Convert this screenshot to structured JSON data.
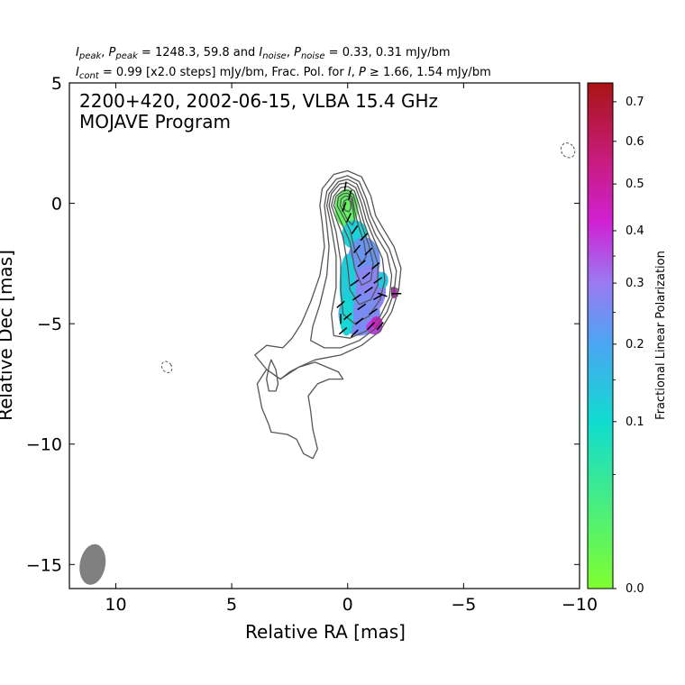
{
  "header": {
    "line1": "I_peak, P_peak = 1248.3, 59.8 and I_noise, P_noise = 0.33, 0.31 mJy/bm",
    "line1_parts": [
      {
        "t": "I",
        "s": "i"
      },
      {
        "t": "peak",
        "s": "sub"
      },
      {
        "t": ", "
      },
      {
        "t": "P",
        "s": "i"
      },
      {
        "t": "peak",
        "s": "sub"
      },
      {
        "t": " = 1248.3, 59.8 and "
      },
      {
        "t": "I",
        "s": "i"
      },
      {
        "t": "noise",
        "s": "sub"
      },
      {
        "t": ", "
      },
      {
        "t": "P",
        "s": "i"
      },
      {
        "t": "noise",
        "s": "sub"
      },
      {
        "t": " = 0.33, 0.31 mJy/bm"
      }
    ],
    "line2": "I_cont = 0.99 [x2.0 steps] mJy/bm, Frac. Pol. for I, P ≥ 1.66, 1.54 mJy/bm",
    "line2_parts": [
      {
        "t": "I",
        "s": "i"
      },
      {
        "t": "cont",
        "s": "sub"
      },
      {
        "t": " = 0.99 [x2.0 steps] mJy/bm, Frac. Pol. for "
      },
      {
        "t": "I",
        "s": "i"
      },
      {
        "t": ", "
      },
      {
        "t": "P",
        "s": "i"
      },
      {
        "t": " ≥ 1.66, 1.54 mJy/bm"
      }
    ]
  },
  "chart_data": {
    "type": "contour",
    "title_lines": [
      "2200+420, 2002-06-15, VLBA 15.4 GHz",
      "MOJAVE Program"
    ],
    "xlabel": "Relative RA [mas]",
    "ylabel": "Relative Dec [mas]",
    "xlim": [
      12,
      -10
    ],
    "ylim": [
      -16,
      5
    ],
    "xticks": [
      10,
      5,
      0,
      -5,
      -10
    ],
    "yticks": [
      5,
      0,
      -5,
      -10,
      -15
    ],
    "contour_color": "#555555",
    "contours": [
      [
        [
          1.2,
          -0.1
        ],
        [
          1.1,
          0.6
        ],
        [
          0.6,
          1.2
        ],
        [
          0.0,
          1.35
        ],
        [
          -0.6,
          1.1
        ],
        [
          -1.0,
          0.3
        ],
        [
          -1.2,
          -0.5
        ],
        [
          -1.5,
          -1.0
        ],
        [
          -2.0,
          -1.8
        ],
        [
          -2.3,
          -2.7
        ],
        [
          -2.2,
          -3.6
        ],
        [
          -1.9,
          -4.5
        ],
        [
          -1.4,
          -5.3
        ],
        [
          -0.6,
          -5.9
        ],
        [
          0.3,
          -6.3
        ],
        [
          1.4,
          -6.5
        ],
        [
          2.1,
          -6.8
        ],
        [
          2.5,
          -7.0
        ],
        [
          2.9,
          -7.3
        ],
        [
          3.5,
          -6.9
        ],
        [
          4.0,
          -6.3
        ],
        [
          3.5,
          -5.9
        ],
        [
          2.8,
          -6.0
        ],
        [
          2.4,
          -5.6
        ],
        [
          2.0,
          -5.0
        ],
        [
          1.6,
          -4.1
        ],
        [
          1.2,
          -3.0
        ],
        [
          1.0,
          -1.8
        ],
        [
          1.1,
          -0.8
        ],
        [
          1.2,
          -0.1
        ]
      ],
      [
        [
          3.5,
          -6.9
        ],
        [
          3.9,
          -7.5
        ],
        [
          3.7,
          -8.5
        ],
        [
          3.4,
          -9.2
        ],
        [
          3.3,
          -9.5
        ],
        [
          2.6,
          -9.6
        ],
        [
          2.2,
          -9.8
        ],
        [
          1.9,
          -10.4
        ],
        [
          1.5,
          -10.6
        ],
        [
          1.3,
          -10.2
        ],
        [
          1.5,
          -9.4
        ],
        [
          1.6,
          -8.6
        ],
        [
          1.7,
          -8.0
        ],
        [
          1.3,
          -7.5
        ],
        [
          0.8,
          -7.3
        ],
        [
          0.2,
          -7.3
        ],
        [
          0.4,
          -7.0
        ],
        [
          1.4,
          -6.6
        ],
        [
          2.1,
          -6.8
        ],
        [
          2.9,
          -7.3
        ],
        [
          3.5,
          -6.9
        ]
      ],
      [
        [
          3.3,
          -6.5
        ],
        [
          3.1,
          -6.9
        ],
        [
          3.0,
          -7.5
        ],
        [
          3.1,
          -7.8
        ],
        [
          3.4,
          -7.8
        ],
        [
          3.5,
          -7.3
        ],
        [
          3.4,
          -6.8
        ],
        [
          3.3,
          -6.5
        ]
      ],
      [
        [
          1.0,
          -0.1
        ],
        [
          0.9,
          0.5
        ],
        [
          0.5,
          1.0
        ],
        [
          0.0,
          1.15
        ],
        [
          -0.5,
          0.9
        ],
        [
          -0.8,
          0.2
        ],
        [
          -1.0,
          -0.5
        ],
        [
          -1.3,
          -1.1
        ],
        [
          -1.8,
          -1.9
        ],
        [
          -2.1,
          -2.8
        ],
        [
          -2.0,
          -3.7
        ],
        [
          -1.7,
          -4.5
        ],
        [
          -1.2,
          -5.2
        ],
        [
          -0.5,
          -5.7
        ],
        [
          0.3,
          -6.0
        ],
        [
          1.0,
          -6.0
        ],
        [
          1.6,
          -5.7
        ],
        [
          1.5,
          -5.1
        ],
        [
          1.2,
          -4.2
        ],
        [
          0.9,
          -3.0
        ],
        [
          0.8,
          -1.8
        ],
        [
          0.9,
          -0.9
        ],
        [
          1.0,
          -0.1
        ]
      ],
      [
        [
          0.9,
          -0.1
        ],
        [
          0.8,
          0.4
        ],
        [
          0.4,
          0.9
        ],
        [
          0.0,
          1.0
        ],
        [
          -0.4,
          0.8
        ],
        [
          -0.7,
          0.1
        ],
        [
          -0.9,
          -0.6
        ],
        [
          -1.2,
          -1.3
        ],
        [
          -1.7,
          -2.1
        ],
        [
          -1.9,
          -3.0
        ],
        [
          -1.8,
          -3.9
        ],
        [
          -1.4,
          -4.7
        ],
        [
          -0.8,
          -5.3
        ],
        [
          -0.1,
          -5.6
        ],
        [
          0.6,
          -5.5
        ],
        [
          0.7,
          -4.6
        ],
        [
          0.5,
          -3.5
        ],
        [
          0.5,
          -2.2
        ],
        [
          0.7,
          -1.0
        ],
        [
          0.9,
          -0.1
        ]
      ],
      [
        [
          0.8,
          -0.1
        ],
        [
          0.7,
          0.4
        ],
        [
          0.35,
          0.8
        ],
        [
          0.0,
          0.85
        ],
        [
          -0.35,
          0.65
        ],
        [
          -0.6,
          0.0
        ],
        [
          -0.8,
          -0.7
        ],
        [
          -1.1,
          -1.4
        ],
        [
          -1.5,
          -2.3
        ],
        [
          -1.6,
          -3.2
        ],
        [
          -1.4,
          -4.0
        ],
        [
          -0.9,
          -4.7
        ],
        [
          -0.3,
          -5.0
        ],
        [
          0.2,
          -4.6
        ],
        [
          0.3,
          -3.6
        ],
        [
          0.3,
          -2.4
        ],
        [
          0.5,
          -1.2
        ],
        [
          0.8,
          -0.1
        ]
      ],
      [
        [
          0.7,
          -0.1
        ],
        [
          0.6,
          0.3
        ],
        [
          0.3,
          0.65
        ],
        [
          0.0,
          0.7
        ],
        [
          -0.3,
          0.5
        ],
        [
          -0.5,
          -0.1
        ],
        [
          -0.7,
          -0.8
        ],
        [
          -1.0,
          -1.6
        ],
        [
          -1.3,
          -2.5
        ],
        [
          -1.3,
          -3.4
        ],
        [
          -1.0,
          -4.0
        ],
        [
          -0.5,
          -4.2
        ],
        [
          -0.1,
          -3.6
        ],
        [
          0.0,
          -2.6
        ],
        [
          0.2,
          -1.4
        ],
        [
          0.7,
          -0.1
        ]
      ],
      [
        [
          0.6,
          -0.1
        ],
        [
          0.5,
          0.3
        ],
        [
          0.25,
          0.5
        ],
        [
          0.0,
          0.55
        ],
        [
          -0.25,
          0.35
        ],
        [
          -0.4,
          -0.2
        ],
        [
          -0.6,
          -0.9
        ],
        [
          -0.9,
          -1.7
        ],
        [
          -1.1,
          -2.5
        ],
        [
          -1.0,
          -3.2
        ],
        [
          -0.6,
          -3.4
        ],
        [
          -0.3,
          -2.7
        ],
        [
          -0.1,
          -1.6
        ],
        [
          0.6,
          -0.1
        ]
      ],
      [
        [
          0.45,
          -0.1
        ],
        [
          0.4,
          0.25
        ],
        [
          0.2,
          0.4
        ],
        [
          0.0,
          0.42
        ],
        [
          -0.2,
          0.25
        ],
        [
          -0.3,
          -0.3
        ],
        [
          -0.45,
          -0.9
        ],
        [
          -0.7,
          -1.6
        ],
        [
          -0.8,
          -2.2
        ],
        [
          -0.6,
          -2.5
        ],
        [
          -0.3,
          -1.9
        ],
        [
          -0.1,
          -1.1
        ],
        [
          0.45,
          -0.1
        ]
      ],
      [
        [
          0.32,
          -0.1
        ],
        [
          0.28,
          0.18
        ],
        [
          0.12,
          0.3
        ],
        [
          0.0,
          0.3
        ],
        [
          -0.15,
          0.18
        ],
        [
          -0.22,
          -0.2
        ],
        [
          -0.3,
          -0.7
        ],
        [
          -0.2,
          -0.9
        ],
        [
          0.0,
          -0.7
        ],
        [
          0.32,
          -0.1
        ]
      ],
      [
        [
          0.2,
          -0.1
        ],
        [
          0.15,
          0.1
        ],
        [
          0.0,
          0.17
        ],
        [
          -0.12,
          0.08
        ],
        [
          -0.14,
          -0.2
        ],
        [
          -0.05,
          -0.35
        ],
        [
          0.1,
          -0.3
        ],
        [
          0.2,
          -0.1
        ]
      ],
      [
        [
          -1.9,
          -3.5
        ],
        [
          -2.15,
          -3.55
        ],
        [
          -2.15,
          -3.85
        ],
        [
          -1.9,
          -3.85
        ],
        [
          -1.9,
          -3.5
        ]
      ]
    ],
    "dashed_contours": [
      {
        "cx": 7.8,
        "cy": -6.8,
        "rx": 0.2,
        "ry": 0.25
      },
      {
        "cx": -9.5,
        "cy": 2.2,
        "rx": 0.28,
        "ry": 0.32
      }
    ],
    "beam": {
      "cx": 11.0,
      "cy": -15.0,
      "major": 0.85,
      "minor": 0.55,
      "pa_deg": 10,
      "color": "#808080"
    },
    "polarization_patches": [
      {
        "x": 0.05,
        "y": -0.2,
        "rx": 0.5,
        "ry": 0.8,
        "frac": 0.03
      },
      {
        "x": -0.3,
        "y": -1.3,
        "rx": 0.55,
        "ry": 0.6,
        "frac": 0.12
      },
      {
        "x": -0.7,
        "y": -2.4,
        "rx": 0.7,
        "ry": 1.0,
        "frac": 0.24
      },
      {
        "x": -0.9,
        "y": -3.6,
        "rx": 0.75,
        "ry": 1.0,
        "frac": 0.28
      },
      {
        "x": -0.5,
        "y": -4.6,
        "rx": 0.9,
        "ry": 0.9,
        "frac": 0.26
      },
      {
        "x": 0.0,
        "y": -3.4,
        "rx": 0.35,
        "ry": 1.3,
        "frac": 0.13
      },
      {
        "x": 0.05,
        "y": -4.7,
        "rx": 0.3,
        "ry": 0.8,
        "frac": 0.11
      },
      {
        "x": -1.5,
        "y": -3.2,
        "rx": 0.25,
        "ry": 0.35,
        "frac": 0.14
      },
      {
        "x": -1.15,
        "y": -5.15,
        "rx": 0.35,
        "ry": 0.3,
        "frac": 0.38
      },
      {
        "x": -1.25,
        "y": -4.95,
        "rx": 0.25,
        "ry": 0.25,
        "frac": 0.44
      },
      {
        "x": -2.0,
        "y": -3.7,
        "rx": 0.12,
        "ry": 0.25,
        "frac": 0.42
      }
    ],
    "evpa_ticks": [
      {
        "x": 0.1,
        "y": 0.7,
        "angle": 80
      },
      {
        "x": -0.1,
        "y": 0.35,
        "angle": 75
      },
      {
        "x": 0.15,
        "y": -0.15,
        "angle": 70
      },
      {
        "x": -0.05,
        "y": -0.6,
        "angle": 65
      },
      {
        "x": -0.3,
        "y": -1.1,
        "angle": 55
      },
      {
        "x": -0.7,
        "y": -1.4,
        "angle": 45
      },
      {
        "x": -0.4,
        "y": -1.9,
        "angle": 50
      },
      {
        "x": -0.9,
        "y": -2.0,
        "angle": 45
      },
      {
        "x": -0.6,
        "y": -2.5,
        "angle": 40
      },
      {
        "x": -1.2,
        "y": -2.6,
        "angle": 40
      },
      {
        "x": -0.8,
        "y": -3.0,
        "angle": 40
      },
      {
        "x": -1.3,
        "y": -3.2,
        "angle": 35
      },
      {
        "x": -0.3,
        "y": -3.3,
        "angle": 35
      },
      {
        "x": -0.9,
        "y": -3.6,
        "angle": 35
      },
      {
        "x": -0.4,
        "y": -3.9,
        "angle": 35
      },
      {
        "x": -1.3,
        "y": -3.9,
        "angle": 30
      },
      {
        "x": 0.3,
        "y": -4.2,
        "angle": 40
      },
      {
        "x": -0.6,
        "y": -4.3,
        "angle": 35
      },
      {
        "x": -1.1,
        "y": -4.5,
        "angle": 35
      },
      {
        "x": 0.0,
        "y": -4.7,
        "angle": 40
      },
      {
        "x": -0.5,
        "y": -4.9,
        "angle": 40
      },
      {
        "x": -1.0,
        "y": -5.1,
        "angle": 45
      },
      {
        "x": 0.2,
        "y": -5.3,
        "angle": 40
      },
      {
        "x": -0.3,
        "y": -5.4,
        "angle": 45
      },
      {
        "x": -1.4,
        "y": -5.1,
        "angle": 50
      },
      {
        "x": 0.3,
        "y": -4.8,
        "angle": 90
      },
      {
        "x": -1.5,
        "y": -3.8,
        "angle": -20
      },
      {
        "x": -2.1,
        "y": -3.75,
        "angle": 0
      }
    ],
    "colorbar": {
      "label": "Fractional Linear Polarization",
      "min": 0.0,
      "max": 0.75,
      "ticks": [
        0.0,
        0.1,
        0.2,
        0.3,
        0.4,
        0.5,
        0.6,
        0.7
      ],
      "tick_labels": [
        "0.0",
        "0.1",
        "0.2",
        "0.3",
        "0.4",
        "0.5",
        "0.6",
        "0.7"
      ],
      "scale": "power",
      "colormap_stops": [
        {
          "v": 0.0,
          "color": "#80ff30"
        },
        {
          "v": 0.1,
          "color": "#10dcd0"
        },
        {
          "v": 0.2,
          "color": "#4aa6f2"
        },
        {
          "v": 0.3,
          "color": "#9a7af2"
        },
        {
          "v": 0.42,
          "color": "#d020d2"
        },
        {
          "v": 0.55,
          "color": "#c81c80"
        },
        {
          "v": 0.75,
          "color": "#aa1414"
        }
      ]
    }
  }
}
